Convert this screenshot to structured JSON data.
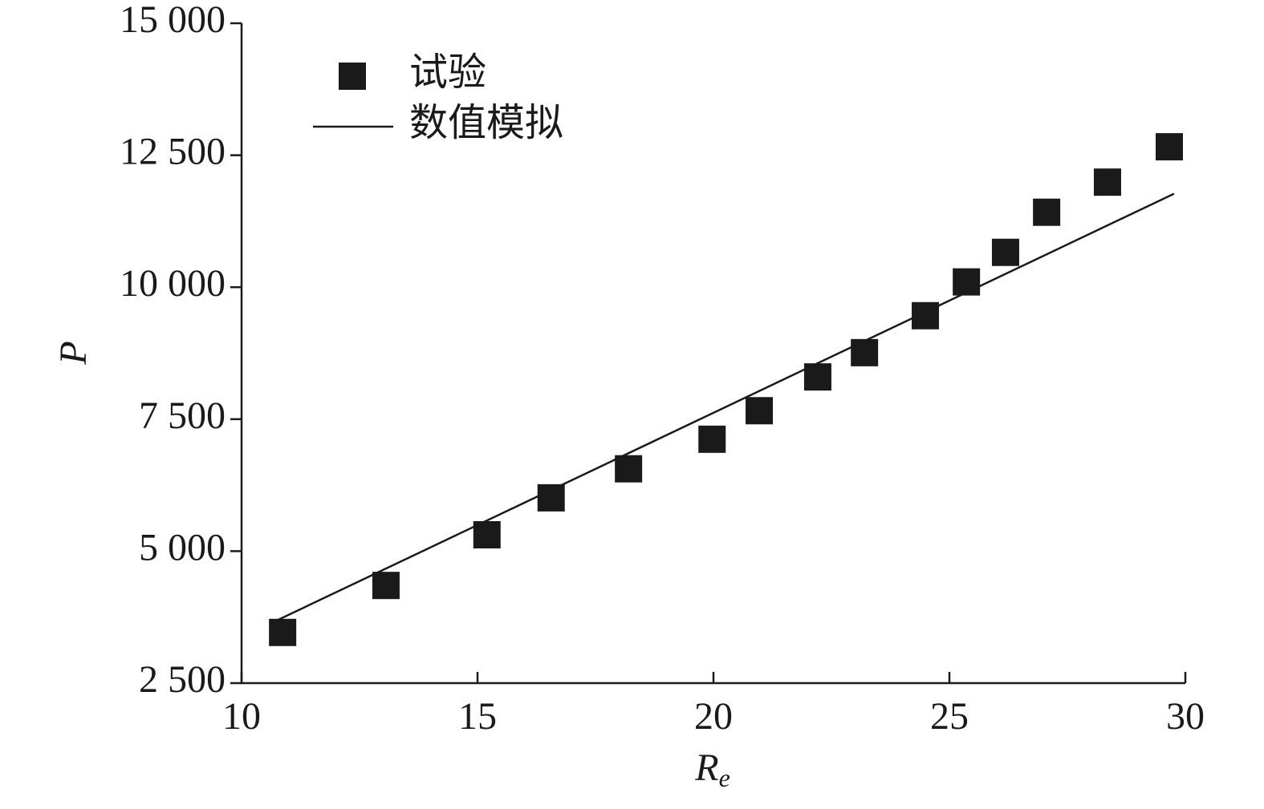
{
  "chart_data": {
    "type": "scatter",
    "x_label": "Re",
    "y_label": "P",
    "xlim": [
      10,
      30
    ],
    "xticks": [
      10,
      15,
      20,
      25,
      30
    ],
    "ylim": [
      2500,
      15000
    ],
    "yticks": [
      {
        "value": 2500,
        "label": "2 500"
      },
      {
        "value": 5000,
        "label": "5 000"
      },
      {
        "value": 7500,
        "label": "7 500"
      },
      {
        "value": 10000,
        "label": "10 000"
      },
      {
        "value": 12500,
        "label": "12 500"
      },
      {
        "value": 15000,
        "label": "15 000"
      }
    ],
    "legend": "upper left",
    "series": [
      {
        "name": "试验",
        "type": "scatter",
        "color": "#1a1a1a",
        "x": [
          10.87,
          13.06,
          15.2,
          16.56,
          18.2,
          19.97,
          20.97,
          22.21,
          23.2,
          24.49,
          25.36,
          26.19,
          27.06,
          28.35,
          29.66
        ],
        "values": [
          3460,
          4350,
          5310,
          6010,
          6560,
          7120,
          7660,
          8300,
          8760,
          9460,
          10100,
          10660,
          11420,
          11990,
          12660
        ]
      },
      {
        "name": "数值模拟",
        "type": "line",
        "color": "#1a1a1a",
        "x": [
          10.66,
          29.76
        ],
        "values": [
          3650,
          11770
        ]
      }
    ]
  }
}
